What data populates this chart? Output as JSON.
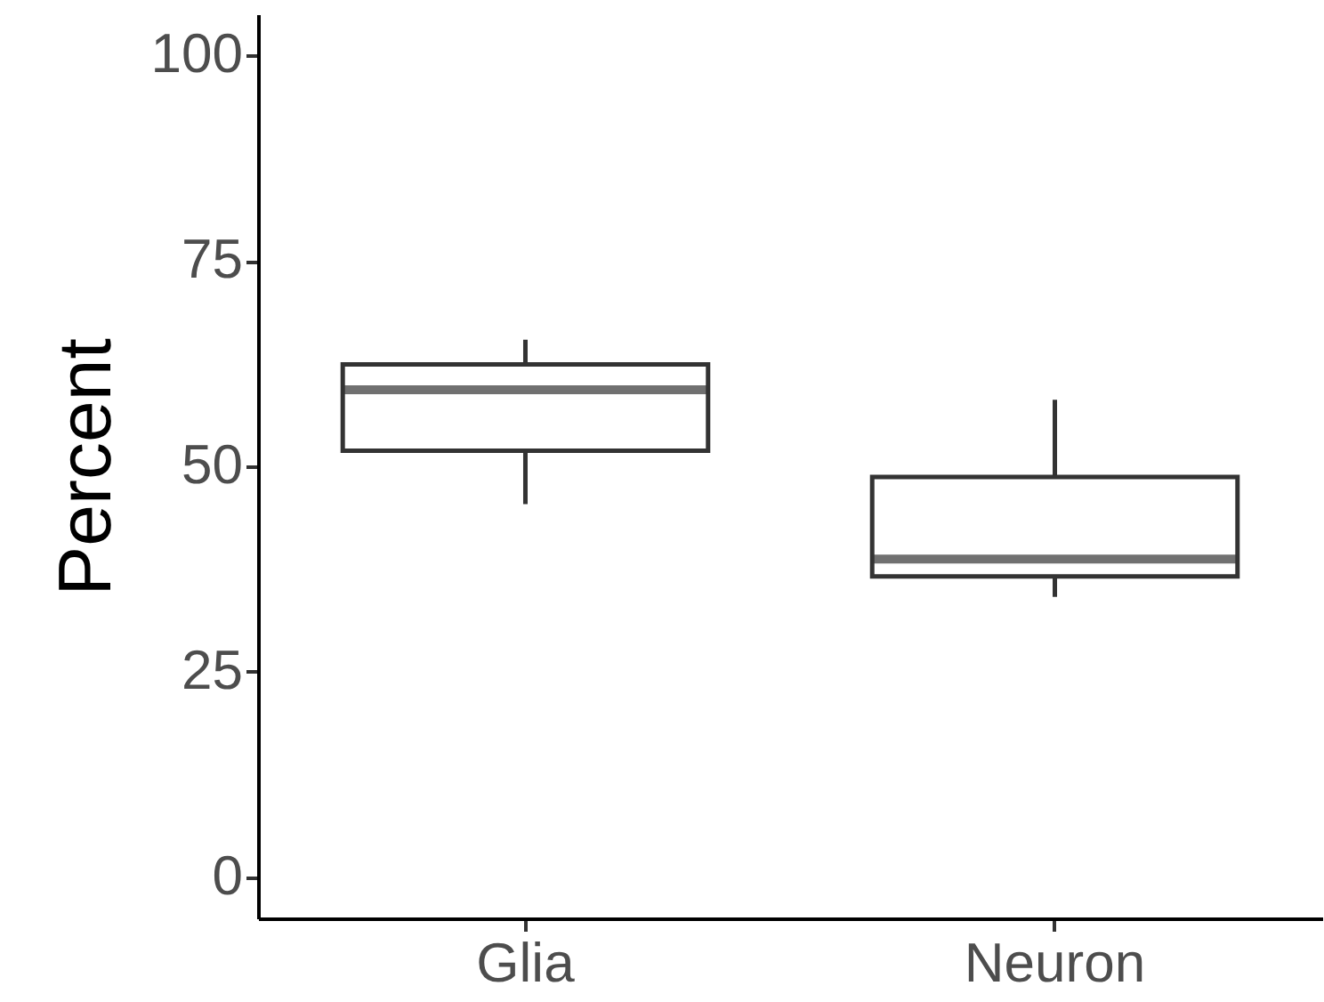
{
  "chart_data": {
    "type": "box",
    "ylabel": "Percent",
    "categories": [
      "Glia",
      "Neuron"
    ],
    "boxes": [
      {
        "low": 45.4,
        "q1": 51.9,
        "median": 59.3,
        "q3": 62.4,
        "high": 65.4
      },
      {
        "low": 34.1,
        "q1": 36.6,
        "median": 38.7,
        "q3": 48.7,
        "high": 58.1
      }
    ],
    "color": "#333333",
    "ylim": [
      -5,
      105
    ],
    "yticks": [
      0,
      25,
      50,
      75,
      100
    ],
    "grid": false
  }
}
